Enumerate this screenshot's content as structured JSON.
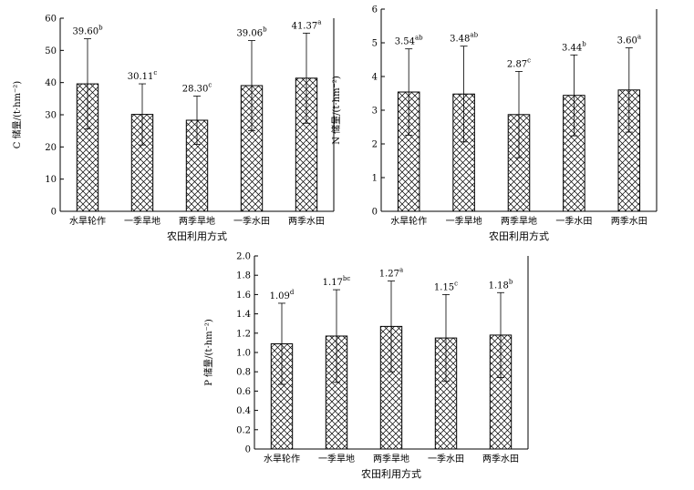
{
  "chart_data": [
    {
      "type": "bar",
      "categories": [
        "水旱轮作",
        "一季旱地",
        "两季旱地",
        "一季水田",
        "两季水田"
      ],
      "values": [
        39.6,
        30.11,
        28.3,
        39.06,
        41.37
      ],
      "errors": [
        14.0,
        9.5,
        7.5,
        14.0,
        14.0
      ],
      "value_labels": [
        "39.60",
        "30.11",
        "28.30",
        "39.06",
        "41.37"
      ],
      "significance": [
        "b",
        "c",
        "c",
        "b",
        "a"
      ],
      "xlabel": "农田利用方式",
      "ylabel": "C 储量/(t·hm⁻²)",
      "ylim": [
        0,
        60
      ],
      "yticks": [
        0,
        10,
        20,
        30,
        40,
        50,
        60
      ],
      "ytick_labels": [
        "0",
        "10",
        "20",
        "30",
        "40",
        "50",
        "60"
      ],
      "bar_fill": "crosshatch",
      "grid": false
    },
    {
      "type": "bar",
      "categories": [
        "水旱轮作",
        "一季旱地",
        "两季旱地",
        "一季水田",
        "两季水田"
      ],
      "values": [
        3.54,
        3.48,
        2.87,
        3.44,
        3.6
      ],
      "errors": [
        1.28,
        1.42,
        1.28,
        1.2,
        1.25
      ],
      "value_labels": [
        "3.54",
        "3.48",
        "2.87",
        "3.44",
        "3.60"
      ],
      "significance": [
        "ab",
        "ab",
        "c",
        "b",
        "a"
      ],
      "xlabel": "农田利用方式",
      "ylabel": "N 储量/(t·hm⁻²)",
      "ylim": [
        0,
        6
      ],
      "yticks": [
        0,
        1,
        2,
        3,
        4,
        5,
        6
      ],
      "ytick_labels": [
        "0",
        "1",
        "2",
        "3",
        "4",
        "5",
        "6"
      ],
      "bar_fill": "crosshatch",
      "grid": false
    },
    {
      "type": "bar",
      "categories": [
        "水旱轮作",
        "一季旱地",
        "两季旱地",
        "一季水田",
        "两季水田"
      ],
      "values": [
        1.09,
        1.17,
        1.27,
        1.15,
        1.18
      ],
      "errors": [
        0.42,
        0.48,
        0.47,
        0.45,
        0.44
      ],
      "value_labels": [
        "1.09",
        "1.17",
        "1.27",
        "1.15",
        "1.18"
      ],
      "significance": [
        "d",
        "bc",
        "a",
        "c",
        "b"
      ],
      "xlabel": "农田利用方式",
      "ylabel": "P 储量/(t·hm⁻²)",
      "ylim": [
        0,
        2.0
      ],
      "yticks": [
        0,
        0.2,
        0.4,
        0.6,
        0.8,
        1.0,
        1.2,
        1.4,
        1.6,
        1.8,
        2.0
      ],
      "ytick_labels": [
        "0",
        "0.2",
        "0.4",
        "0.6",
        "0.8",
        "1.0",
        "1.2",
        "1.4",
        "1.6",
        "1.8",
        "2.0"
      ],
      "bar_fill": "crosshatch",
      "grid": false
    }
  ]
}
